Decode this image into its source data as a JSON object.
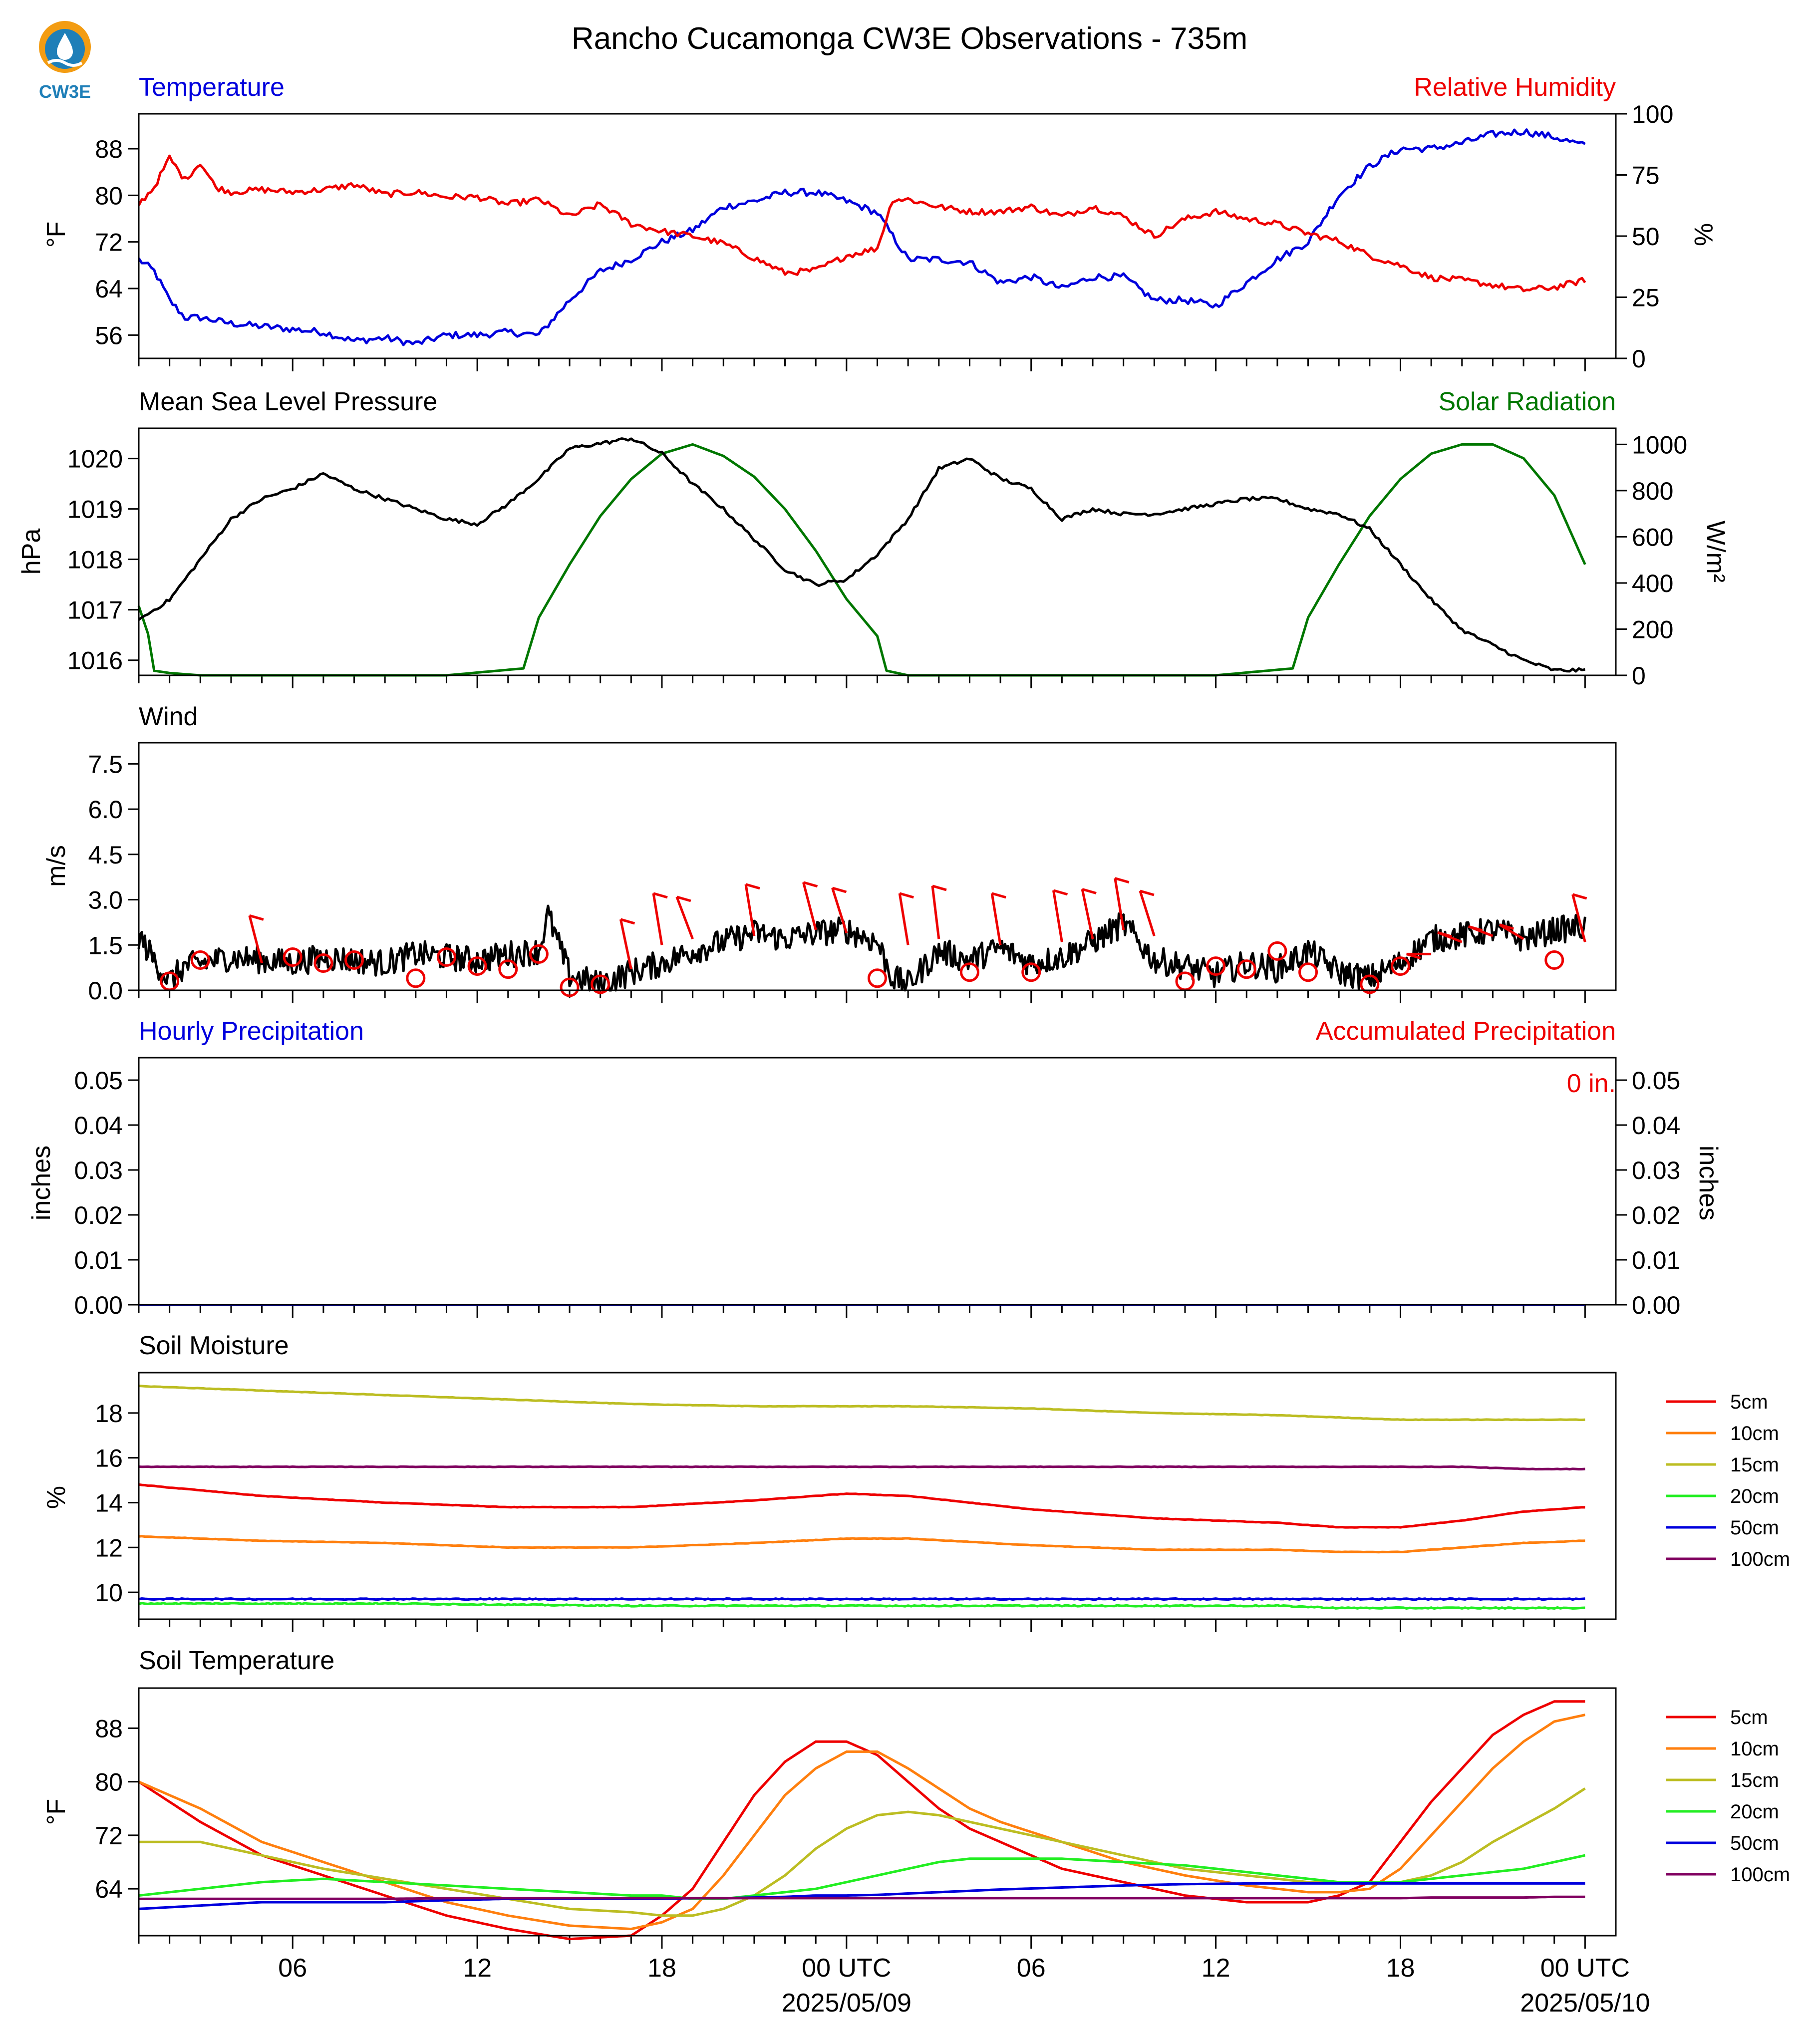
{
  "title": "Rancho Cucamonga CW3E Observations - 735m",
  "logo_text": "CW3E",
  "x_axis": {
    "range_hours": [
      0,
      48
    ],
    "ticks": [
      {
        "h": 5,
        "label": "06",
        "sub": ""
      },
      {
        "h": 11,
        "label": "12",
        "sub": ""
      },
      {
        "h": 17,
        "label": "18",
        "sub": ""
      },
      {
        "h": 23,
        "label": "00 UTC",
        "sub": "2025/05/09"
      },
      {
        "h": 29,
        "label": "06",
        "sub": ""
      },
      {
        "h": 35,
        "label": "12",
        "sub": ""
      },
      {
        "h": 41,
        "label": "18",
        "sub": ""
      },
      {
        "h": 47,
        "label": "00 UTC",
        "sub": "2025/05/10"
      }
    ]
  },
  "colors": {
    "temperature": "#0000dd",
    "humidity": "#ee0000",
    "pressure": "#000000",
    "solar": "#007700",
    "wind": "#000000",
    "barb": "#ee0000",
    "hourly_label": "#0000dd",
    "accum_label": "#ee0000"
  },
  "panels": {
    "temp_rh": {
      "left_title": "Temperature",
      "right_title": "Relative Humidity",
      "left_ylabel": "°F",
      "right_ylabel": "%",
      "left_ticks": [
        "56",
        "64",
        "72",
        "80",
        "88"
      ],
      "right_ticks": [
        "0",
        "25",
        "50",
        "75",
        "100"
      ]
    },
    "pressure": {
      "left_title": "Mean Sea Level Pressure",
      "right_title": "Solar Radiation",
      "left_ylabel": "hPa",
      "right_ylabel": "W/m²",
      "left_ticks": [
        "1016",
        "1017",
        "1018",
        "1019",
        "1020"
      ],
      "right_ticks": [
        "0",
        "200",
        "400",
        "600",
        "800",
        "1000"
      ]
    },
    "wind": {
      "left_title": "Wind",
      "left_ylabel": "m/s",
      "left_ticks": [
        "0.0",
        "1.5",
        "3.0",
        "4.5",
        "6.0",
        "7.5"
      ]
    },
    "precip": {
      "left_title": "Hourly Precipitation",
      "right_title": "Accumulated Precipitation",
      "left_ylabel": "inches",
      "right_ylabel": "inches",
      "accum_text": "0 in.",
      "left_ticks": [
        "0.00",
        "0.01",
        "0.02",
        "0.03",
        "0.04",
        "0.05"
      ],
      "right_ticks": [
        "0.00",
        "0.01",
        "0.02",
        "0.03",
        "0.04",
        "0.05"
      ]
    },
    "soil_moisture": {
      "left_title": "Soil Moisture",
      "left_ylabel": "%",
      "left_ticks": [
        "10",
        "12",
        "14",
        "16",
        "18"
      ],
      "legend": [
        "5cm",
        "10cm",
        "15cm",
        "20cm",
        "50cm",
        "100cm"
      ]
    },
    "soil_temp": {
      "left_title": "Soil Temperature",
      "left_ylabel": "°F",
      "left_ticks": [
        "64",
        "72",
        "80",
        "88"
      ],
      "legend": [
        "5cm",
        "10cm",
        "15cm",
        "20cm",
        "50cm",
        "100cm"
      ]
    }
  },
  "depth_colors": [
    "#ee0000",
    "#ff7f0e",
    "#bcbd22",
    "#22ee22",
    "#0000dd",
    "#800060"
  ],
  "chart_data": {
    "type": "line",
    "x_unit": "hours after 2025/05/08 01 UTC",
    "temperature_F": {
      "x": [
        0,
        0.5,
        1,
        1.5,
        2,
        3,
        4,
        5,
        6,
        7,
        8,
        9,
        10,
        11,
        12,
        13,
        14,
        15,
        16,
        17,
        18,
        19,
        20,
        21,
        22,
        23,
        24,
        25,
        26,
        27,
        28,
        29,
        30,
        31,
        32,
        33,
        34,
        35,
        36,
        37,
        38,
        39,
        40,
        41,
        42,
        43,
        44,
        45,
        46,
        47
      ],
      "y": [
        69,
        67,
        62,
        59,
        59,
        58,
        57.5,
        57,
        56.5,
        55,
        55.5,
        54.5,
        56,
        56,
        56.5,
        56,
        62,
        67,
        69,
        72,
        74,
        78,
        79,
        80.5,
        80.5,
        79,
        77,
        69,
        69,
        68.5,
        65,
        66,
        64,
        66,
        66,
        62,
        62,
        61,
        65,
        69,
        72,
        80,
        85,
        88,
        88,
        89,
        90.5,
        91,
        90,
        88.5
      ],
      "ylim": [
        52,
        94
      ]
    },
    "relative_humidity_pct": {
      "x": [
        0,
        0.5,
        1,
        1.5,
        2,
        2.5,
        3,
        4,
        5,
        6,
        7,
        8,
        9,
        10,
        11,
        12,
        13,
        14,
        15,
        16,
        17,
        18,
        19,
        20,
        21,
        22,
        23,
        24,
        24.5,
        25,
        26,
        27,
        28,
        29,
        30,
        31,
        32,
        33,
        34,
        35,
        36,
        37,
        38,
        39,
        40,
        41,
        42,
        43,
        44,
        45,
        46,
        47
      ],
      "y": [
        63,
        70,
        82,
        73,
        80,
        70,
        68,
        69,
        68,
        69,
        71,
        67,
        68,
        66,
        66,
        63,
        65,
        58,
        63,
        55,
        52,
        50,
        47,
        41,
        35,
        36,
        42,
        45,
        65,
        65,
        62,
        60,
        60,
        62,
        58,
        62,
        58,
        50,
        57,
        60,
        57,
        55,
        51,
        48,
        42,
        38,
        33,
        32,
        30,
        28,
        29,
        32
      ],
      "ylim": [
        0,
        100
      ]
    },
    "pressure_hPa": {
      "x": [
        0,
        1,
        2,
        3,
        4,
        5,
        6,
        7,
        8,
        9,
        10,
        11,
        12,
        13,
        14,
        15,
        16,
        17,
        18,
        19,
        20,
        21,
        22,
        23,
        24,
        25,
        26,
        27,
        28,
        29,
        30,
        31,
        32,
        33,
        34,
        35,
        36,
        37,
        38,
        39,
        40,
        41,
        42,
        43,
        44,
        45,
        46,
        47
      ],
      "y": [
        1016.8,
        1017.2,
        1018,
        1018.8,
        1019.2,
        1019.4,
        1019.7,
        1019.4,
        1019.2,
        1019.0,
        1018.8,
        1018.7,
        1019.1,
        1019.6,
        1020.2,
        1020.3,
        1020.4,
        1020.1,
        1019.5,
        1019.0,
        1018.4,
        1017.8,
        1017.5,
        1017.6,
        1018.1,
        1018.8,
        1019.8,
        1020.0,
        1019.6,
        1019.4,
        1018.8,
        1019.0,
        1018.9,
        1018.9,
        1019.0,
        1019.1,
        1019.2,
        1019.2,
        1019.0,
        1018.9,
        1018.6,
        1017.9,
        1017.2,
        1016.6,
        1016.3,
        1016.0,
        1015.8,
        1015.8
      ],
      "ylim": [
        1015.7,
        1020.6
      ]
    },
    "solar_Wm2": {
      "x": [
        0,
        0.3,
        0.5,
        1,
        2,
        10,
        12.5,
        13,
        14,
        15,
        16,
        17,
        18,
        19,
        20,
        21,
        22,
        23,
        24,
        24.3,
        25,
        26,
        35,
        37.5,
        38,
        39,
        40,
        41,
        42,
        43,
        44,
        45,
        46,
        47
      ],
      "y": [
        300,
        180,
        20,
        10,
        0,
        0,
        30,
        250,
        480,
        690,
        850,
        960,
        1000,
        950,
        860,
        720,
        540,
        330,
        170,
        20,
        0,
        0,
        0,
        30,
        250,
        480,
        690,
        850,
        960,
        1000,
        1000,
        940,
        780,
        480
      ],
      "ylim": [
        0,
        1000
      ]
    },
    "wind_speed_ms": {
      "x": [
        0,
        0.5,
        1,
        1.5,
        2,
        3,
        4,
        5,
        6,
        7,
        8,
        9,
        10,
        11,
        12,
        13,
        13.3,
        14,
        15,
        16,
        17,
        18,
        19,
        20,
        21,
        22,
        23,
        24,
        24.5,
        25,
        26,
        27,
        28,
        29,
        30,
        31,
        32,
        33,
        34,
        35,
        36,
        37,
        38,
        39,
        40,
        41,
        42,
        43,
        44,
        45,
        46,
        47
      ],
      "y": [
        1.8,
        1.0,
        0.3,
        0.8,
        0.9,
        1.1,
        1.0,
        0.9,
        1.1,
        1.0,
        0.9,
        1.2,
        1.1,
        1.0,
        1.2,
        1.3,
        2.5,
        0.5,
        0.2,
        0.6,
        0.9,
        1.3,
        1.6,
        1.9,
        1.7,
        1.9,
        2.0,
        1.6,
        0.4,
        0.2,
        1.3,
        1.0,
        1.4,
        0.9,
        1.1,
        1.6,
        2.2,
        1.0,
        0.8,
        0.5,
        0.9,
        0.7,
        1.3,
        0.6,
        0.4,
        0.9,
        1.7,
        1.8,
        2.0,
        1.7,
        2.0,
        2.1
      ],
      "ylim": [
        0,
        8.2
      ]
    },
    "hourly_precip_in": {
      "x": [
        0,
        47
      ],
      "y": [
        0,
        0
      ],
      "ylim": [
        0,
        0.055
      ]
    },
    "accum_precip_in": {
      "x": [
        0,
        47
      ],
      "y": [
        0,
        0
      ],
      "ylim": [
        0,
        0.055
      ]
    },
    "soil_moisture_pct": {
      "x": [
        0,
        4,
        8,
        12,
        16,
        20,
        23,
        25,
        29,
        33,
        37,
        39,
        41,
        43,
        45,
        47
      ],
      "series": [
        {
          "name": "5cm",
          "values": [
            14.8,
            14.3,
            14.0,
            13.8,
            13.8,
            14.1,
            14.4,
            14.3,
            13.7,
            13.3,
            13.1,
            12.9,
            12.9,
            13.2,
            13.6,
            13.8
          ]
        },
        {
          "name": "10cm",
          "values": [
            12.5,
            12.3,
            12.2,
            12.0,
            12.0,
            12.2,
            12.4,
            12.4,
            12.1,
            11.9,
            11.9,
            11.8,
            11.8,
            12.0,
            12.2,
            12.3
          ]
        },
        {
          "name": "15cm",
          "values": [
            19.2,
            19.0,
            18.8,
            18.6,
            18.4,
            18.3,
            18.3,
            18.3,
            18.2,
            18.0,
            17.9,
            17.8,
            17.7,
            17.7,
            17.7,
            17.7
          ]
        },
        {
          "name": "20cm",
          "values": [
            9.5,
            9.5,
            9.5,
            9.45,
            9.4,
            9.4,
            9.4,
            9.4,
            9.4,
            9.4,
            9.4,
            9.3,
            9.3,
            9.3,
            9.3,
            9.3
          ]
        },
        {
          "name": "50cm",
          "values": [
            9.7,
            9.7,
            9.7,
            9.7,
            9.7,
            9.7,
            9.7,
            9.7,
            9.7,
            9.7,
            9.7,
            9.7,
            9.7,
            9.7,
            9.7,
            9.7
          ]
        },
        {
          "name": "100cm",
          "values": [
            15.6,
            15.6,
            15.6,
            15.6,
            15.6,
            15.6,
            15.6,
            15.6,
            15.6,
            15.6,
            15.6,
            15.6,
            15.6,
            15.6,
            15.5,
            15.5
          ]
        }
      ],
      "ylim": [
        8.8,
        19.8
      ]
    },
    "soil_temperature_F": {
      "x": [
        0,
        2,
        4,
        6,
        8,
        10,
        12,
        14,
        16,
        17,
        18,
        19,
        20,
        21,
        22,
        23,
        24,
        25,
        26,
        27,
        28,
        30,
        32,
        34,
        36,
        37,
        38,
        39,
        40,
        41,
        42,
        43,
        44,
        45,
        46,
        47
      ],
      "series": [
        {
          "name": "5cm",
          "values": [
            80,
            74,
            69,
            66,
            63,
            60,
            58,
            56.5,
            57,
            60,
            64,
            71,
            78,
            83,
            86,
            86,
            84,
            80,
            76,
            73,
            71,
            67,
            65,
            63,
            62,
            62,
            62,
            63,
            65,
            71,
            77,
            82,
            87,
            90,
            92,
            92
          ]
        },
        {
          "name": "10cm",
          "values": [
            80,
            76,
            71,
            68,
            65,
            62,
            60,
            58.5,
            58,
            59,
            61,
            66,
            72,
            78,
            82,
            84.5,
            84.5,
            82,
            79,
            76,
            74,
            71,
            68,
            66,
            64.5,
            64,
            63.5,
            63.5,
            64,
            67,
            72,
            77,
            82,
            86,
            89,
            90
          ]
        },
        {
          "name": "15cm",
          "values": [
            71,
            71,
            69,
            67,
            65.5,
            64,
            62.5,
            61,
            60.5,
            60,
            60,
            61,
            63,
            66,
            70,
            73,
            75,
            75.5,
            75,
            74,
            73,
            71,
            69,
            67,
            66,
            65.5,
            65,
            65,
            65,
            65,
            66,
            68,
            71,
            73.5,
            76,
            79
          ]
        },
        {
          "name": "20cm",
          "values": [
            63,
            64,
            65,
            65.5,
            65,
            64.5,
            64,
            63.5,
            63,
            63,
            62.5,
            62.5,
            63,
            63.5,
            64,
            65,
            66,
            67,
            68,
            68.5,
            68.5,
            68.5,
            68,
            67.5,
            66.5,
            66,
            65.5,
            65,
            65,
            65,
            65.5,
            66,
            66.5,
            67,
            68,
            69
          ]
        },
        {
          "name": "50cm",
          "values": [
            61,
            61.5,
            62,
            62,
            62,
            62.3,
            62.5,
            62.5,
            62.5,
            62.5,
            62.6,
            62.6,
            62.7,
            62.8,
            63,
            63,
            63.1,
            63.3,
            63.5,
            63.7,
            63.9,
            64.2,
            64.5,
            64.7,
            64.8,
            64.8,
            64.8,
            64.8,
            64.8,
            64.8,
            64.8,
            64.8,
            64.8,
            64.8,
            64.8,
            64.8
          ]
        },
        {
          "name": "100cm",
          "values": [
            62.5,
            62.5,
            62.5,
            62.5,
            62.5,
            62.6,
            62.6,
            62.6,
            62.6,
            62.6,
            62.6,
            62.6,
            62.6,
            62.6,
            62.6,
            62.6,
            62.6,
            62.6,
            62.6,
            62.6,
            62.6,
            62.6,
            62.6,
            62.6,
            62.6,
            62.6,
            62.6,
            62.6,
            62.6,
            62.6,
            62.7,
            62.7,
            62.7,
            62.7,
            62.8,
            62.8
          ]
        }
      ],
      "ylim": [
        57,
        94
      ]
    },
    "wind_barbs": {
      "x": [
        1,
        2,
        4,
        5,
        6,
        7,
        9,
        10,
        11,
        12,
        13,
        14,
        15,
        16,
        17,
        18,
        20,
        22,
        23,
        24,
        25,
        26,
        27,
        28,
        29,
        30,
        31,
        32,
        33,
        34,
        35,
        36,
        37,
        38,
        40,
        41,
        42,
        43,
        44,
        45,
        46,
        47
      ],
      "speed_ms": [
        0.3,
        1.0,
        0.9,
        1.1,
        0.9,
        1.0,
        0.4,
        1.1,
        0.8,
        0.7,
        1.2,
        0.1,
        0.2,
        0.7,
        1.5,
        1.7,
        1.8,
        2.0,
        1.9,
        0.4,
        1.5,
        1.7,
        0.6,
        1.5,
        0.6,
        1.6,
        1.7,
        2.0,
        1.8,
        0.3,
        0.8,
        0.7,
        1.3,
        0.6,
        0.2,
        0.8,
        1.2,
        1.6,
        1.8,
        1.7,
        1.0,
        1.6
      ],
      "calm": [
        true,
        true,
        false,
        true,
        true,
        true,
        true,
        true,
        true,
        true,
        true,
        true,
        true,
        false,
        false,
        false,
        false,
        false,
        false,
        true,
        false,
        false,
        true,
        false,
        true,
        false,
        false,
        false,
        false,
        true,
        true,
        true,
        true,
        true,
        true,
        true,
        false,
        false,
        false,
        false,
        true,
        false
      ],
      "direction_deg": [
        0,
        0,
        210,
        0,
        0,
        0,
        0,
        0,
        0,
        0,
        0,
        0,
        0,
        205,
        200,
        220,
        200,
        210,
        215,
        0,
        200,
        195,
        0,
        200,
        0,
        200,
        205,
        200,
        215,
        0,
        0,
        0,
        0,
        0,
        0,
        0,
        270,
        260,
        280,
        285,
        0,
        210
      ]
    }
  }
}
